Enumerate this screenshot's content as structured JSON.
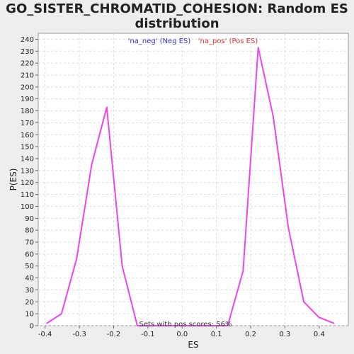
{
  "chart_data": {
    "type": "line",
    "title_lines": [
      "GO_SISTER_CHROMATID_COHESION: Random ES",
      "distribution"
    ],
    "xlabel": "ES",
    "ylabel": "P(ES)",
    "xlim": [
      -0.42,
      0.485
    ],
    "ylim": [
      0,
      245
    ],
    "x_ticks": [
      -0.4,
      -0.3,
      -0.2,
      -0.1,
      0.0,
      0.1,
      0.2,
      0.3,
      0.4
    ],
    "x_tick_labels": [
      "-0.4",
      "-0.3",
      "-0.2",
      "-0.1",
      "0.0",
      "0.1",
      "0.2",
      "0.3",
      "0.4"
    ],
    "y_ticks": [
      0,
      10,
      20,
      30,
      40,
      50,
      60,
      70,
      80,
      90,
      100,
      110,
      120,
      130,
      140,
      150,
      160,
      170,
      180,
      190,
      200,
      210,
      220,
      230,
      240
    ],
    "grid": true,
    "legend": [
      {
        "label": "'na_neg' (Neg ES)",
        "color": "#3333cc"
      },
      {
        "label": "'na_pos' (Pos ES)",
        "color": "#dd3333"
      }
    ],
    "series": [
      {
        "color": "#ee44ee",
        "x": [
          -0.395,
          -0.352,
          -0.308,
          -0.264,
          -0.22,
          -0.175,
          -0.131,
          -0.087,
          -0.043,
          0.0,
          0.045,
          0.089,
          0.133,
          0.178,
          0.222,
          0.266,
          0.31,
          0.355,
          0.399,
          0.443
        ],
        "y": [
          2,
          10,
          56,
          135,
          183,
          50,
          0,
          0,
          0,
          0,
          0,
          0,
          0,
          46,
          233,
          175,
          82,
          20,
          7,
          2
        ]
      }
    ],
    "annotation": "Sets with pos scores: 56%"
  }
}
